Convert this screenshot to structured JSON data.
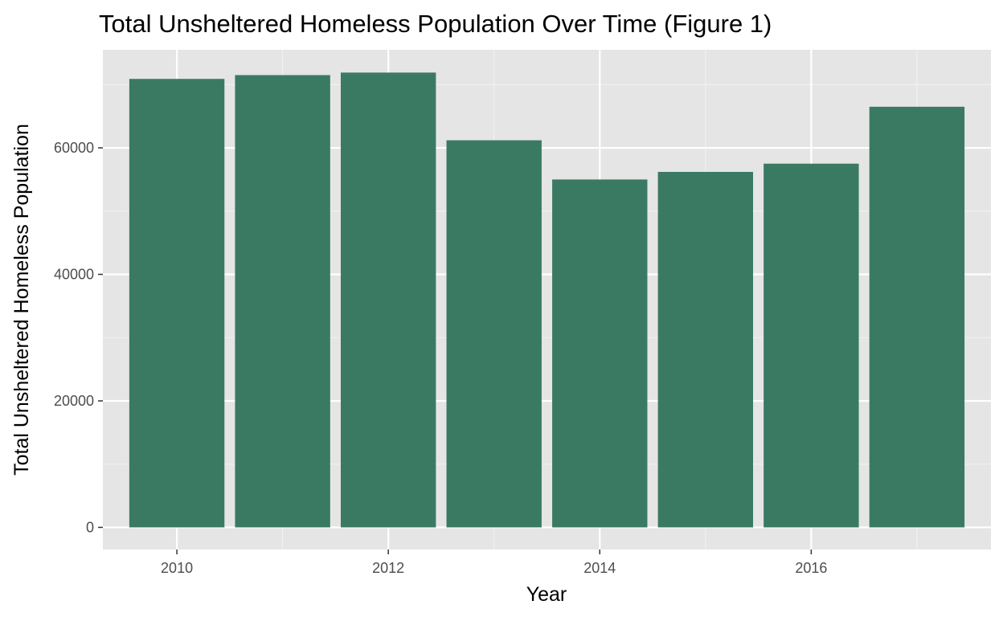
{
  "chart_data": {
    "type": "bar",
    "title": "Total Unsheltered Homeless Population Over Time (Figure 1)",
    "xlabel": "Year",
    "ylabel": "Total Unsheltered Homeless Population",
    "categories": [
      2010,
      2011,
      2012,
      2013,
      2014,
      2015,
      2016,
      2017
    ],
    "values": [
      70900,
      71500,
      71900,
      61200,
      55000,
      56200,
      57500,
      66500
    ],
    "xlim": [
      2009.3,
      2017.7
    ],
    "ylim": [
      -3500,
      75500
    ],
    "x_ticks": [
      2010,
      2012,
      2014,
      2016
    ],
    "x_tick_labels": [
      "2010",
      "2012",
      "2014",
      "2016"
    ],
    "y_ticks": [
      0,
      20000,
      40000,
      60000
    ],
    "y_tick_labels": [
      "0",
      "20000",
      "40000",
      "60000"
    ],
    "grid": true,
    "legend": "none",
    "colors": {
      "bar": "#3a7a63",
      "panel": "#e5e5e5",
      "grid_major": "#ffffff",
      "grid_minor": "#f2f2f2",
      "tick": "#333333"
    }
  }
}
